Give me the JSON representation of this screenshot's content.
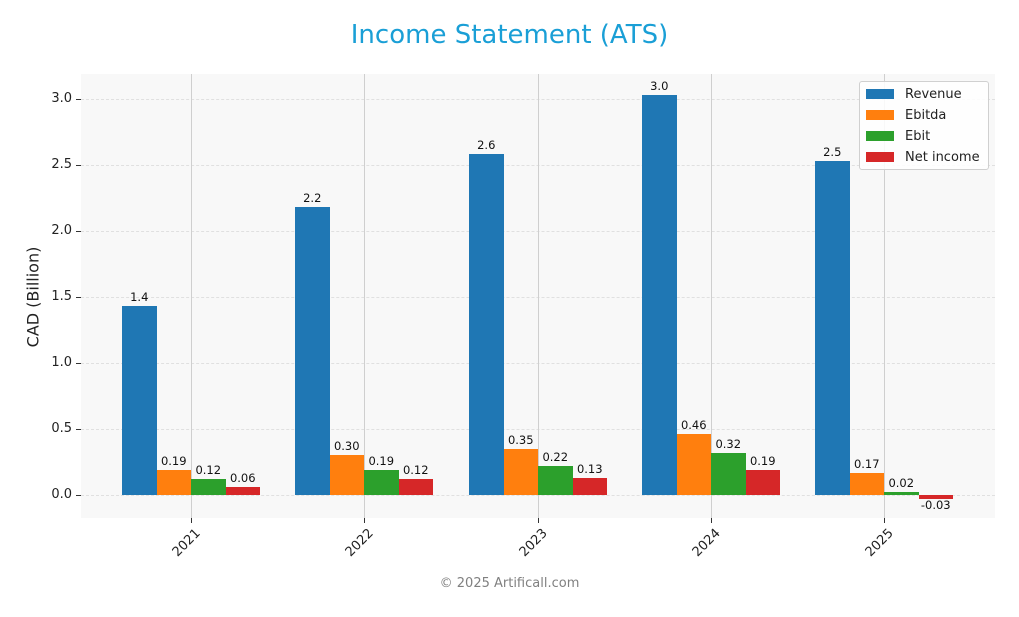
{
  "chart": {
    "title": "Income Statement (ATS)",
    "footer": "© 2025 Artificall.com"
  },
  "colors": {
    "title": "#1a9fd6",
    "Revenue": "#1f77b4",
    "Ebitda": "#ff7f0e",
    "Ebit": "#2ca02c",
    "Net income": "#d62728"
  },
  "chart_data": {
    "type": "bar",
    "title": "Income Statement (ATS)",
    "xlabel": "",
    "ylabel": "CAD (Billion)",
    "ylim": [
      -0.17,
      3.2
    ],
    "yticks": [
      "0.0",
      "0.5",
      "1.0",
      "1.5",
      "2.0",
      "2.5",
      "3.0"
    ],
    "categories": [
      "2021",
      "2022",
      "2023",
      "2024",
      "2025"
    ],
    "series": [
      {
        "name": "Revenue",
        "values": [
          1.43,
          2.18,
          2.58,
          3.03,
          2.53
        ],
        "labels": [
          "1.4",
          "2.2",
          "2.6",
          "3.0",
          "2.5"
        ]
      },
      {
        "name": "Ebitda",
        "values": [
          0.19,
          0.3,
          0.35,
          0.46,
          0.17
        ],
        "labels": [
          "0.19",
          "0.30",
          "0.35",
          "0.46",
          "0.17"
        ]
      },
      {
        "name": "Ebit",
        "values": [
          0.12,
          0.19,
          0.22,
          0.32,
          0.02
        ],
        "labels": [
          "0.12",
          "0.19",
          "0.22",
          "0.32",
          "0.02"
        ]
      },
      {
        "name": "Net income",
        "values": [
          0.06,
          0.12,
          0.13,
          0.19,
          -0.03
        ],
        "labels": [
          "0.06",
          "0.12",
          "0.13",
          "0.19",
          "-0.03"
        ]
      }
    ],
    "legend": {
      "position": "upper right",
      "entries": [
        "Revenue",
        "Ebitda",
        "Ebit",
        "Net income"
      ]
    },
    "grid": true
  }
}
